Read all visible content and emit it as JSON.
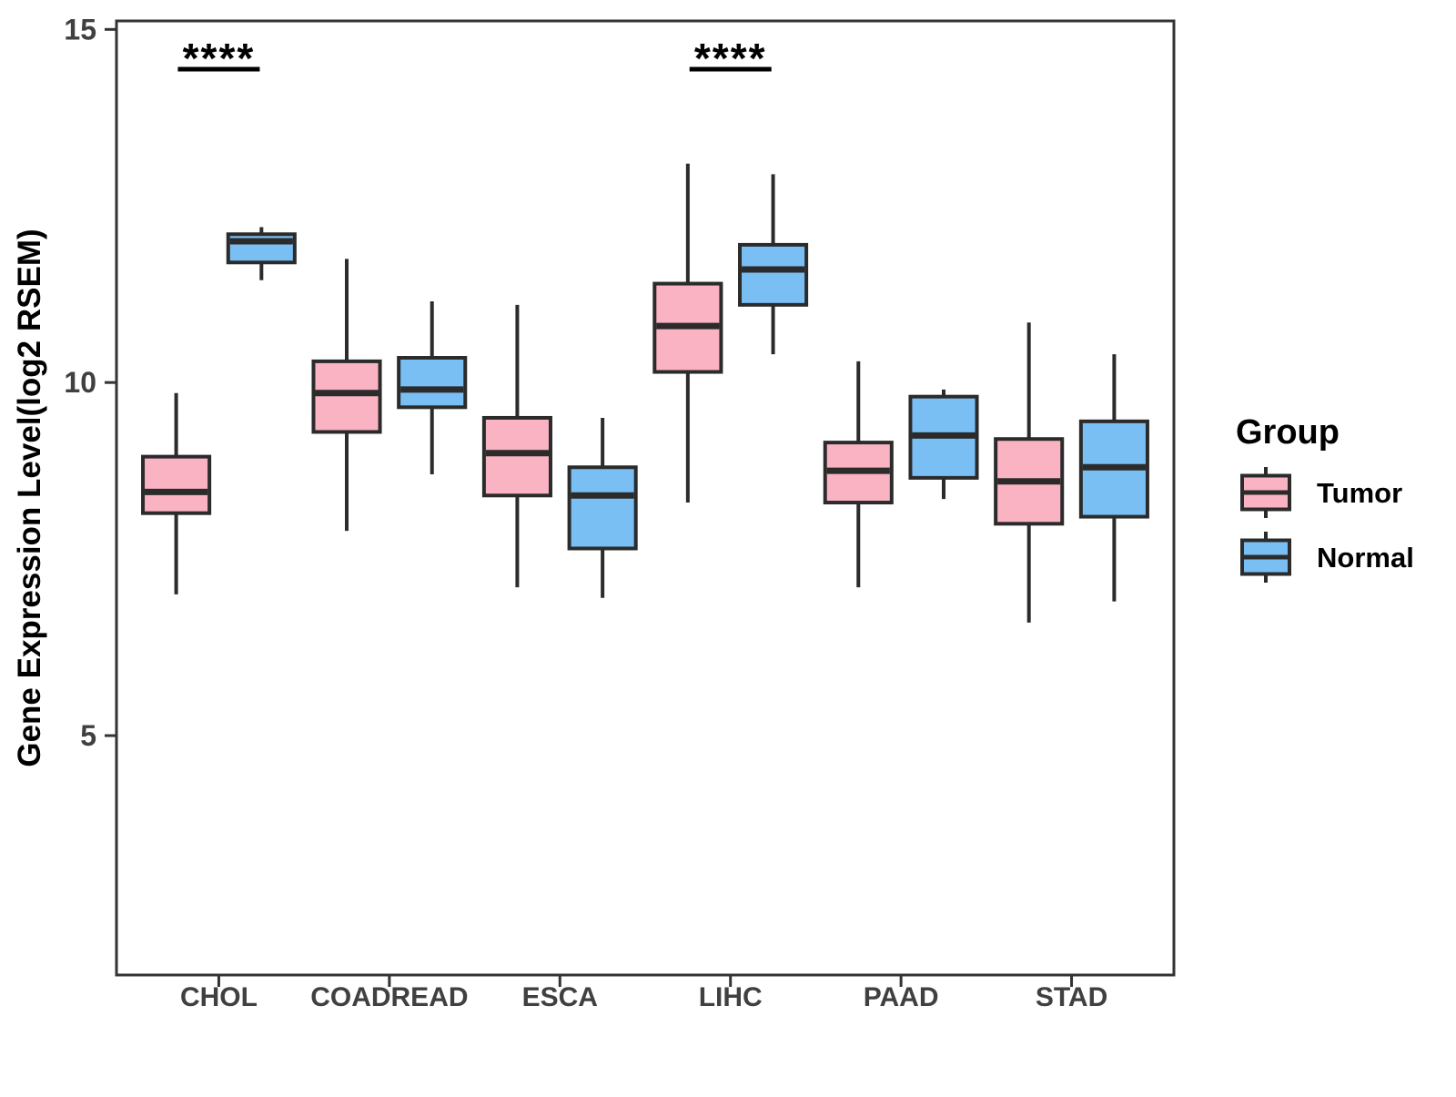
{
  "chart_data": {
    "type": "boxplot",
    "title": "",
    "xlabel": "",
    "ylabel": "Gene Expression Level(log2 RSEM)",
    "categories": [
      "CHOL",
      "COADREAD",
      "ESCA",
      "LIHC",
      "PAAD",
      "STAD"
    ],
    "yticks": [
      5,
      10,
      15
    ],
    "ytick_labels": [
      "5",
      "10",
      "15"
    ],
    "ylim": [
      1.61,
      15.12
    ],
    "grid": "off",
    "legend": {
      "title": "Group",
      "position": "right",
      "entries": [
        "Tumor",
        "Normal"
      ]
    },
    "groups": [
      {
        "name": "Tumor",
        "fill": "#FAB3C2"
      },
      {
        "name": "Normal",
        "fill": "#79BFF4"
      }
    ],
    "series": [
      {
        "name": "Tumor",
        "boxes": [
          {
            "category": "CHOL",
            "min": 7.0,
            "q1": 8.15,
            "median": 8.45,
            "q3": 8.95,
            "max": 9.85
          },
          {
            "category": "COADREAD",
            "min": 7.9,
            "q1": 9.3,
            "median": 9.85,
            "q3": 10.3,
            "max": 11.75
          },
          {
            "category": "ESCA",
            "min": 7.1,
            "q1": 8.4,
            "median": 9.0,
            "q3": 9.5,
            "max": 11.1
          },
          {
            "category": "LIHC",
            "min": 8.3,
            "q1": 10.15,
            "median": 10.8,
            "q3": 11.4,
            "max": 13.1
          },
          {
            "category": "PAAD",
            "min": 7.1,
            "q1": 8.3,
            "median": 8.75,
            "q3": 9.15,
            "max": 10.3
          },
          {
            "category": "STAD",
            "min": 6.6,
            "q1": 8.0,
            "median": 8.6,
            "q3": 9.2,
            "max": 10.85
          }
        ]
      },
      {
        "name": "Normal",
        "boxes": [
          {
            "category": "CHOL",
            "min": 11.45,
            "q1": 11.7,
            "median": 12.0,
            "q3": 12.1,
            "max": 12.2
          },
          {
            "category": "COADREAD",
            "min": 8.7,
            "q1": 9.65,
            "median": 9.9,
            "q3": 10.35,
            "max": 11.15
          },
          {
            "category": "ESCA",
            "min": 6.95,
            "q1": 7.65,
            "median": 8.4,
            "q3": 8.8,
            "max": 9.5
          },
          {
            "category": "LIHC",
            "min": 10.4,
            "q1": 11.1,
            "median": 11.6,
            "q3": 11.95,
            "max": 12.95
          },
          {
            "category": "PAAD",
            "min": 8.35,
            "q1": 8.65,
            "median": 9.25,
            "q3": 9.8,
            "max": 9.9
          },
          {
            "category": "STAD",
            "min": 6.9,
            "q1": 8.1,
            "median": 8.8,
            "q3": 9.45,
            "max": 10.4
          }
        ]
      }
    ],
    "significance": [
      {
        "category": "CHOL",
        "label": "****"
      },
      {
        "category": "LIHC",
        "label": "****"
      }
    ],
    "colors": {
      "box_stroke": "#2B2B2B",
      "panel_border": "#333333",
      "tick_label": "#404040",
      "axis_title": "#000000",
      "legend_text": "#000000",
      "significance": "#000000",
      "background": "#FFFFFF"
    }
  }
}
